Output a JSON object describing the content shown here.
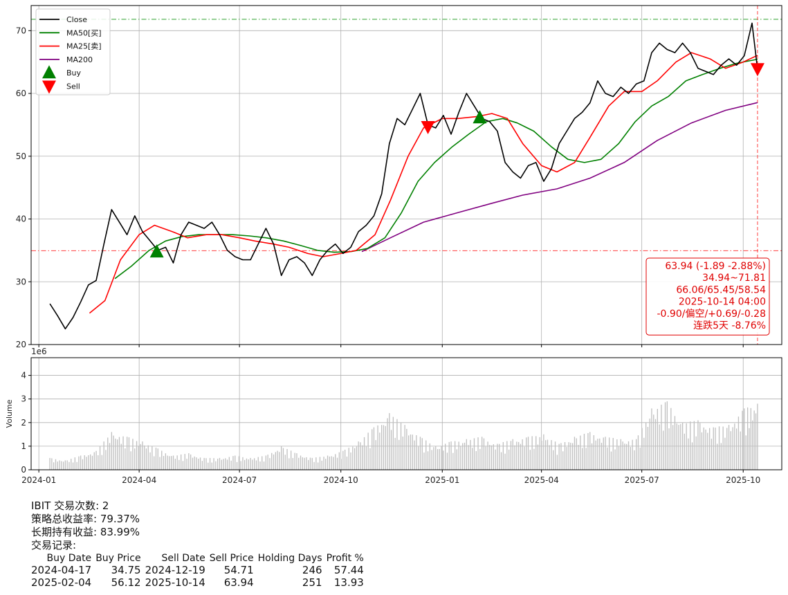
{
  "chart_data": [
    {
      "type": "line",
      "title": "",
      "xlabel": "",
      "ylabel": "",
      "ylim": [
        20,
        74
      ],
      "yticks": [
        20,
        30,
        40,
        50,
        60,
        70
      ],
      "xlim": [
        "2023-12-25",
        "2025-11-05"
      ],
      "xticks": [
        "2024-01",
        "2024-04",
        "2024-07",
        "2024-10",
        "2025-01",
        "2025-04",
        "2025-07",
        "2025-10"
      ],
      "grid": true,
      "legend": {
        "placement": "top-left",
        "entries": [
          {
            "label": "Close",
            "color": "#000000",
            "kind": "line"
          },
          {
            "label": "MA50[买]",
            "color": "#008000",
            "kind": "line"
          },
          {
            "label": "MA25[卖]",
            "color": "#ff0000",
            "kind": "line"
          },
          {
            "label": "MA200",
            "color": "#800080",
            "kind": "line"
          },
          {
            "label": "Buy",
            "color": "#008000",
            "kind": "triangle-up"
          },
          {
            "label": "Sell",
            "color": "#ff0000",
            "kind": "triangle-down"
          }
        ]
      },
      "series": [
        {
          "name": "Close",
          "color": "#000000",
          "x": [
            "2024-01-11",
            "2024-01-18",
            "2024-01-25",
            "2024-02-01",
            "2024-02-08",
            "2024-02-15",
            "2024-02-22",
            "2024-02-29",
            "2024-03-07",
            "2024-03-14",
            "2024-03-21",
            "2024-03-28",
            "2024-04-04",
            "2024-04-11",
            "2024-04-18",
            "2024-04-25",
            "2024-05-02",
            "2024-05-09",
            "2024-05-16",
            "2024-05-23",
            "2024-05-30",
            "2024-06-06",
            "2024-06-13",
            "2024-06-20",
            "2024-06-27",
            "2024-07-04",
            "2024-07-11",
            "2024-07-18",
            "2024-07-25",
            "2024-08-01",
            "2024-08-08",
            "2024-08-15",
            "2024-08-22",
            "2024-08-29",
            "2024-09-05",
            "2024-09-12",
            "2024-09-19",
            "2024-09-26",
            "2024-10-03",
            "2024-10-10",
            "2024-10-17",
            "2024-10-24",
            "2024-10-31",
            "2024-11-07",
            "2024-11-14",
            "2024-11-21",
            "2024-11-28",
            "2024-12-05",
            "2024-12-12",
            "2024-12-19",
            "2024-12-26",
            "2025-01-02",
            "2025-01-09",
            "2025-01-16",
            "2025-01-23",
            "2025-01-30",
            "2025-02-06",
            "2025-02-13",
            "2025-02-20",
            "2025-02-27",
            "2025-03-06",
            "2025-03-13",
            "2025-03-20",
            "2025-03-27",
            "2025-04-03",
            "2025-04-10",
            "2025-04-17",
            "2025-04-24",
            "2025-05-01",
            "2025-05-08",
            "2025-05-15",
            "2025-05-22",
            "2025-05-29",
            "2025-06-05",
            "2025-06-12",
            "2025-06-19",
            "2025-06-26",
            "2025-07-03",
            "2025-07-10",
            "2025-07-17",
            "2025-07-24",
            "2025-07-31",
            "2025-08-07",
            "2025-08-14",
            "2025-08-21",
            "2025-08-28",
            "2025-09-04",
            "2025-09-11",
            "2025-09-18",
            "2025-09-25",
            "2025-10-02",
            "2025-10-09",
            "2025-10-14"
          ],
          "values": [
            26.5,
            24.6,
            22.5,
            24.3,
            26.8,
            29.5,
            30.2,
            36.0,
            41.5,
            39.5,
            37.5,
            40.5,
            38.0,
            36.5,
            35.0,
            35.5,
            33.0,
            37.5,
            39.5,
            39.0,
            38.5,
            39.5,
            37.5,
            35.0,
            34.0,
            33.5,
            33.5,
            36.0,
            38.5,
            36.0,
            31.0,
            33.5,
            34.0,
            33.0,
            31.0,
            33.5,
            35.0,
            36.0,
            34.5,
            35.5,
            38.0,
            39.0,
            40.5,
            44.0,
            52.0,
            56.0,
            55.0,
            57.5,
            60.0,
            55.0,
            54.5,
            56.5,
            53.5,
            57.0,
            60.0,
            58.0,
            56.0,
            55.5,
            54.0,
            49.0,
            47.5,
            46.5,
            48.5,
            49.0,
            46.0,
            48.0,
            52.0,
            54.0,
            56.0,
            57.0,
            58.5,
            62.0,
            60.0,
            59.5,
            61.0,
            60.0,
            61.5,
            62.0,
            66.5,
            68.0,
            67.0,
            66.5,
            68.0,
            66.5,
            64.0,
            63.5,
            63.0,
            64.5,
            65.5,
            64.5,
            66.0,
            71.2,
            63.9
          ]
        },
        {
          "name": "MA50[买]",
          "color": "#008000",
          "x": [
            "2024-03-10",
            "2024-03-25",
            "2024-04-10",
            "2024-04-25",
            "2024-05-10",
            "2024-05-25",
            "2024-06-10",
            "2024-06-25",
            "2024-07-10",
            "2024-07-25",
            "2024-08-10",
            "2024-08-25",
            "2024-09-10",
            "2024-09-25",
            "2024-10-10",
            "2024-10-25",
            "2024-11-10",
            "2024-11-25",
            "2024-12-10",
            "2024-12-25",
            "2025-01-10",
            "2025-01-25",
            "2025-02-10",
            "2025-02-25",
            "2025-03-10",
            "2025-03-25",
            "2025-04-10",
            "2025-04-25",
            "2025-05-10",
            "2025-05-25",
            "2025-06-10",
            "2025-06-25",
            "2025-07-10",
            "2025-07-25",
            "2025-08-10",
            "2025-08-25",
            "2025-09-10",
            "2025-09-25",
            "2025-10-10",
            "2025-10-14"
          ],
          "values": [
            30.5,
            32.5,
            35.0,
            36.5,
            37.2,
            37.5,
            37.5,
            37.5,
            37.3,
            37.0,
            36.5,
            35.8,
            35.0,
            34.7,
            34.8,
            35.3,
            37.0,
            41.0,
            46.0,
            49.0,
            51.5,
            53.5,
            55.5,
            56.0,
            55.3,
            54.0,
            51.5,
            49.5,
            49.0,
            49.5,
            52.0,
            55.5,
            58.0,
            59.5,
            62.0,
            63.0,
            64.0,
            64.8,
            65.3,
            65.45
          ]
        },
        {
          "name": "MA25[卖]",
          "color": "#ff0000",
          "x": [
            "2024-02-16",
            "2024-03-01",
            "2024-03-15",
            "2024-04-01",
            "2024-04-15",
            "2024-05-01",
            "2024-05-15",
            "2024-06-01",
            "2024-06-15",
            "2024-07-01",
            "2024-07-15",
            "2024-08-01",
            "2024-08-15",
            "2024-09-01",
            "2024-09-15",
            "2024-10-01",
            "2024-10-15",
            "2024-11-01",
            "2024-11-15",
            "2024-12-01",
            "2024-12-15",
            "2025-01-01",
            "2025-01-15",
            "2025-02-01",
            "2025-02-15",
            "2025-03-01",
            "2025-03-15",
            "2025-04-01",
            "2025-04-15",
            "2025-05-01",
            "2025-05-15",
            "2025-06-01",
            "2025-06-15",
            "2025-07-01",
            "2025-07-15",
            "2025-08-01",
            "2025-08-15",
            "2025-09-01",
            "2025-09-15",
            "2025-10-01",
            "2025-10-14"
          ],
          "values": [
            25.0,
            27.0,
            33.5,
            37.5,
            39.0,
            38.0,
            37.0,
            37.5,
            37.5,
            37.0,
            36.5,
            36.0,
            35.5,
            34.5,
            34.0,
            34.5,
            35.0,
            37.5,
            43.0,
            50.0,
            54.5,
            56.0,
            56.0,
            56.3,
            56.8,
            56.0,
            52.0,
            48.5,
            47.5,
            49.0,
            53.0,
            58.0,
            60.3,
            60.3,
            62.0,
            65.0,
            66.5,
            65.5,
            64.0,
            65.0,
            66.06
          ]
        },
        {
          "name": "MA200",
          "color": "#800080",
          "x": [
            "2024-10-20",
            "2024-11-15",
            "2024-12-15",
            "2025-01-15",
            "2025-02-15",
            "2025-03-15",
            "2025-04-15",
            "2025-05-15",
            "2025-06-15",
            "2025-07-15",
            "2025-08-15",
            "2025-09-15",
            "2025-10-14"
          ],
          "values": [
            34.8,
            37.0,
            39.5,
            41.0,
            42.5,
            43.8,
            44.8,
            46.5,
            49.0,
            52.5,
            55.3,
            57.3,
            58.54
          ]
        }
      ],
      "markers": [
        {
          "type": "buy",
          "date": "2024-04-17",
          "value": 34.75
        },
        {
          "type": "sell",
          "date": "2024-12-19",
          "value": 54.71
        },
        {
          "type": "buy",
          "date": "2025-02-04",
          "value": 56.12
        },
        {
          "type": "sell",
          "date": "2025-10-14",
          "value": 63.94
        }
      ],
      "reference_lines": [
        {
          "orientation": "horizontal",
          "value": 71.81,
          "color": "#2ca02c",
          "style": "dash-dot"
        },
        {
          "orientation": "horizontal",
          "value": 34.94,
          "color": "#ff4040",
          "style": "dash-dot"
        },
        {
          "orientation": "vertical",
          "date": "2025-10-14",
          "color": "#ff4040",
          "style": "dashed"
        }
      ],
      "info_box": {
        "lines": [
          "63.94 (-1.89 -2.88%)",
          "34.94~71.81",
          "66.06/65.45/58.54",
          "2025-10-14 04:00",
          "-0.90/偏空/+0.69/-0.28",
          "连跌5天 -8.76%"
        ],
        "color": "#e00000",
        "placement": "bottom-right"
      }
    },
    {
      "type": "bar",
      "title": "",
      "ylabel": "Volume",
      "y_multiplier": "1e6",
      "ylim": [
        0,
        4.75
      ],
      "yticks": [
        0,
        1,
        2,
        3,
        4
      ],
      "grid": true,
      "bar_color": "#bfbfbf",
      "x": [
        "2024-01-11",
        "2024-01-25",
        "2024-02-08",
        "2024-02-22",
        "2024-03-07",
        "2024-03-21",
        "2024-04-04",
        "2024-04-18",
        "2024-05-02",
        "2024-05-16",
        "2024-05-30",
        "2024-06-13",
        "2024-06-27",
        "2024-07-11",
        "2024-07-25",
        "2024-08-08",
        "2024-08-22",
        "2024-09-05",
        "2024-09-19",
        "2024-10-03",
        "2024-10-17",
        "2024-10-31",
        "2024-11-14",
        "2024-11-28",
        "2024-12-12",
        "2024-12-26",
        "2025-01-09",
        "2025-01-23",
        "2025-02-06",
        "2025-02-20",
        "2025-03-06",
        "2025-03-20",
        "2025-04-03",
        "2025-04-17",
        "2025-05-01",
        "2025-05-15",
        "2025-05-29",
        "2025-06-12",
        "2025-06-26",
        "2025-07-10",
        "2025-07-24",
        "2025-08-07",
        "2025-08-21",
        "2025-09-04",
        "2025-09-18",
        "2025-10-02",
        "2025-10-14"
      ],
      "values": [
        0.5,
        0.4,
        0.6,
        0.8,
        1.6,
        1.4,
        1.2,
        0.9,
        0.6,
        0.7,
        0.5,
        0.5,
        0.6,
        0.5,
        0.6,
        1.0,
        0.7,
        0.5,
        0.6,
        0.8,
        1.2,
        1.8,
        2.4,
        1.9,
        1.4,
        1.0,
        1.2,
        1.3,
        1.4,
        1.1,
        1.3,
        1.4,
        1.5,
        1.1,
        1.4,
        1.6,
        1.4,
        1.3,
        1.3,
        2.6,
        2.9,
        2.0,
        2.1,
        1.8,
        1.9,
        2.6,
        2.8
      ]
    }
  ],
  "stats": {
    "trade_count": "IBIT 交易次数: 2",
    "strategy_return": "策略总收益率: 79.37%",
    "buy_hold_return": "长期持有收益: 83.99%",
    "records_title": "交易记录:",
    "headers": [
      "Buy Date",
      "Buy Price",
      "Sell Date",
      "Sell Price",
      "Holding Days",
      "Profit %"
    ],
    "rows": [
      [
        "2024-04-17",
        "34.75",
        "2024-12-19",
        "54.71",
        "246",
        "57.44"
      ],
      [
        "2025-02-04",
        "56.12",
        "2025-10-14",
        "63.94",
        "251",
        "13.93"
      ]
    ]
  }
}
